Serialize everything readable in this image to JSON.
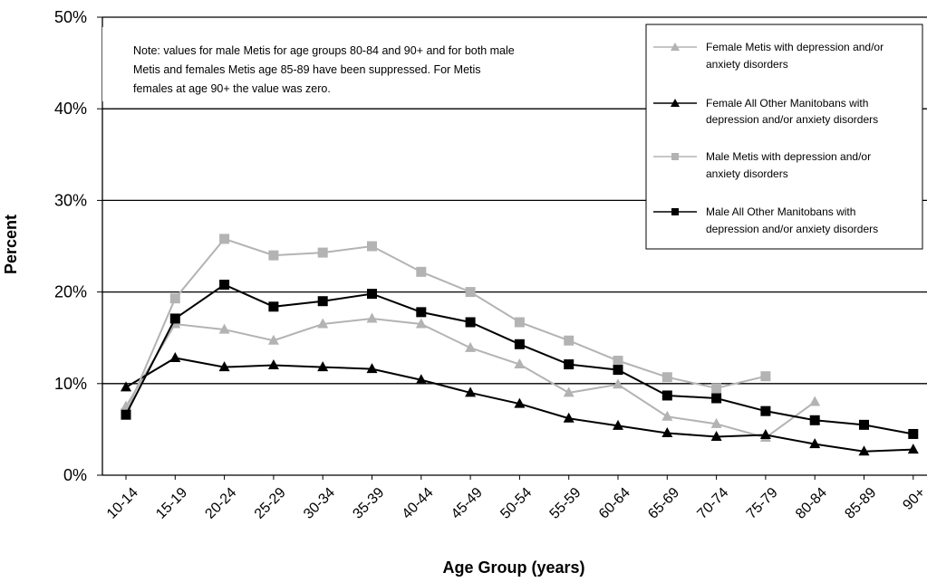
{
  "chart_data": {
    "type": "line",
    "title": "",
    "xlabel": "Age Group (years)",
    "ylabel": "Percent",
    "ylim": [
      0,
      50
    ],
    "yticks": [
      "0%",
      "10%",
      "20%",
      "30%",
      "40%",
      "50%"
    ],
    "grid": "horizontal",
    "legend_position": "top-right",
    "categories": [
      "10-14",
      "15-19",
      "20-24",
      "25-29",
      "30-34",
      "35-39",
      "40-44",
      "45-49",
      "50-54",
      "55-59",
      "60-64",
      "65-69",
      "70-74",
      "75-79",
      "80-84",
      "85-89",
      "90+"
    ],
    "note_lines": [
      "Note: values for male Metis for age groups 80-84 and 90+ and for both male",
      "Metis and females Metis age 85-89 have been suppressed. For Metis",
      "females at age 90+ the value was zero."
    ],
    "series": [
      {
        "name": "Female Metis with depression and/or anxiety disorders",
        "legend_lines": [
          "Female Metis with depression and/or",
          "anxiety disorders"
        ],
        "color": "#b3b3b3",
        "marker": "triangle",
        "values": [
          7.5,
          16.5,
          15.9,
          14.7,
          16.5,
          17.1,
          16.5,
          13.9,
          12.1,
          9.0,
          9.9,
          6.4,
          5.6,
          4.1,
          8.0,
          null,
          null
        ]
      },
      {
        "name": "Female All Other Manitobans with depression and/or anxiety disorders",
        "legend_lines": [
          "Female All Other Manitobans with",
          "depression and/or anxiety disorders"
        ],
        "color": "#000000",
        "marker": "triangle",
        "values": [
          9.6,
          12.8,
          11.8,
          12.0,
          11.8,
          11.6,
          10.4,
          9.0,
          7.8,
          6.2,
          5.4,
          4.6,
          4.2,
          4.4,
          3.4,
          2.6,
          2.8
        ]
      },
      {
        "name": "Male Metis with depression and/or anxiety disorders",
        "legend_lines": [
          "Male Metis with depression and/or",
          "anxiety disorders"
        ],
        "color": "#b3b3b3",
        "marker": "square",
        "values": [
          6.8,
          19.3,
          25.8,
          24.0,
          24.3,
          25.0,
          22.2,
          20.0,
          16.7,
          14.7,
          12.5,
          10.7,
          9.5,
          10.8,
          null,
          null,
          null
        ]
      },
      {
        "name": "Male All Other Manitobans with depression and/or anxiety disorders",
        "legend_lines": [
          "Male All Other Manitobans with",
          "depression and/or anxiety disorders"
        ],
        "color": "#000000",
        "marker": "square",
        "values": [
          6.6,
          17.1,
          20.8,
          18.4,
          19.0,
          19.8,
          17.8,
          16.7,
          14.3,
          12.1,
          11.5,
          8.7,
          8.4,
          7.0,
          6.0,
          5.5,
          4.5
        ]
      }
    ]
  }
}
